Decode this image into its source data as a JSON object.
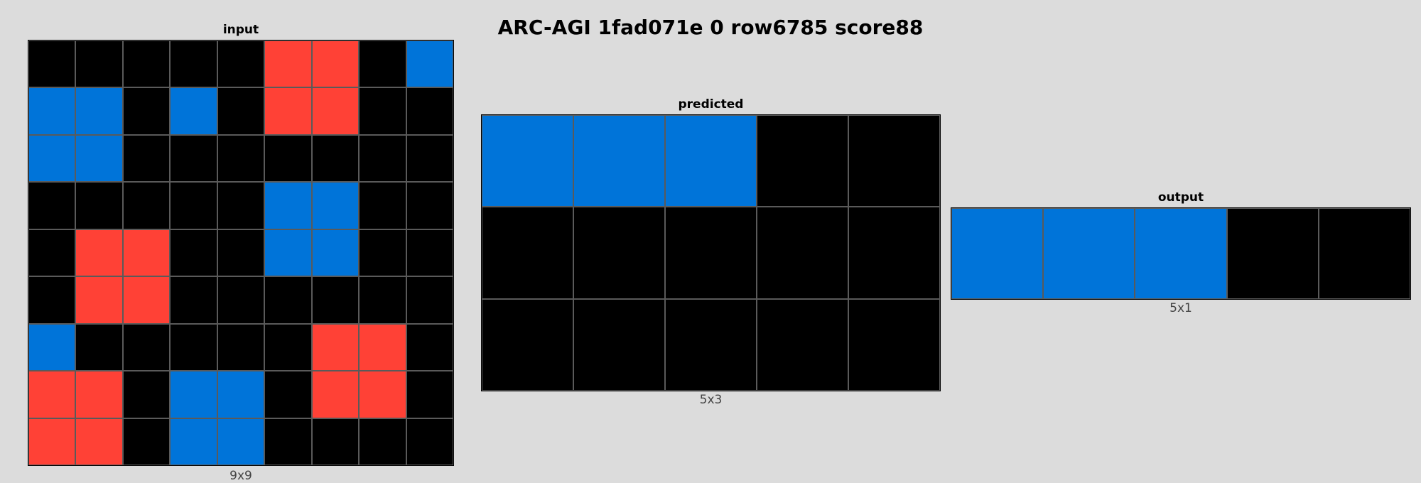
{
  "title": "ARC-AGI 1fad071e 0 row6785 score88",
  "palette": {
    "0": "#000000",
    "1": "#0074d9",
    "2": "#ff4136"
  },
  "panels": {
    "input": {
      "label": "input",
      "size_label": "9x9",
      "rows": [
        [
          0,
          0,
          0,
          0,
          0,
          2,
          2,
          0,
          1
        ],
        [
          1,
          1,
          0,
          1,
          0,
          2,
          2,
          0,
          0
        ],
        [
          1,
          1,
          0,
          0,
          0,
          0,
          0,
          0,
          0
        ],
        [
          0,
          0,
          0,
          0,
          0,
          1,
          1,
          0,
          0
        ],
        [
          0,
          2,
          2,
          0,
          0,
          1,
          1,
          0,
          0
        ],
        [
          0,
          2,
          2,
          0,
          0,
          0,
          0,
          0,
          0
        ],
        [
          1,
          0,
          0,
          0,
          0,
          0,
          2,
          2,
          0
        ],
        [
          2,
          2,
          0,
          1,
          1,
          0,
          2,
          2,
          0
        ],
        [
          2,
          2,
          0,
          1,
          1,
          0,
          0,
          0,
          0
        ]
      ]
    },
    "predicted": {
      "label": "predicted",
      "size_label": "5x3",
      "rows": [
        [
          1,
          1,
          1,
          0,
          0
        ],
        [
          0,
          0,
          0,
          0,
          0
        ],
        [
          0,
          0,
          0,
          0,
          0
        ]
      ]
    },
    "output": {
      "label": "output",
      "size_label": "5x1",
      "rows": [
        [
          1,
          1,
          1,
          0,
          0
        ]
      ]
    }
  }
}
